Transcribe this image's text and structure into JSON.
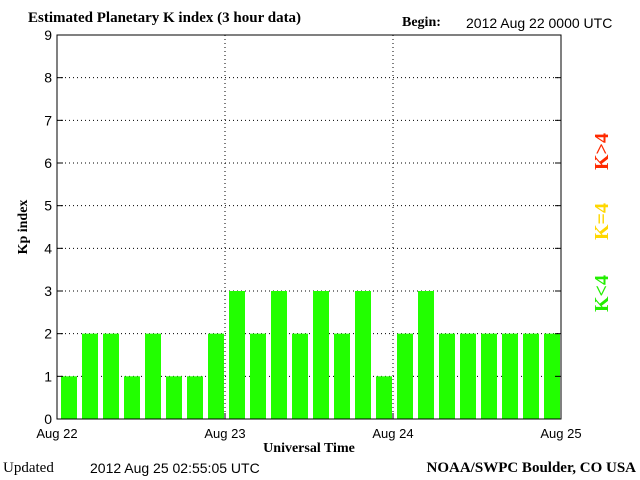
{
  "header": {
    "title": "Estimated Planetary K index (3 hour data)",
    "begin_label": "Begin:",
    "begin_value": "2012 Aug 22 0000 UTC"
  },
  "footer": {
    "updated_label": "Updated",
    "updated_value": "2012 Aug 25 02:55:05 UTC",
    "credit": "NOAA/SWPC Boulder, CO USA"
  },
  "legend": {
    "above": {
      "label": "K>4",
      "color": "#ff2a00"
    },
    "equal": {
      "label": "K=4",
      "color": "#ffd700"
    },
    "below": {
      "label": "K<4",
      "color": "#22ee00"
    }
  },
  "chart_data": {
    "type": "bar",
    "title": "Estimated Planetary K index (3 hour data)",
    "xlabel": "Universal Time",
    "ylabel": "Kp index",
    "ylim": [
      0,
      9
    ],
    "yticks": [
      "0",
      "1",
      "2",
      "3",
      "4",
      "5",
      "6",
      "7",
      "8",
      "9"
    ],
    "xticks": [
      "Aug 22",
      "Aug 23",
      "Aug 24",
      "Aug 25"
    ],
    "x_interval": "3 hour",
    "bar_color": "#22ff00",
    "grid": "dotted",
    "values": [
      1,
      2,
      2,
      1,
      2,
      1,
      1,
      2,
      3,
      2,
      3,
      2,
      3,
      2,
      3,
      1,
      2,
      3,
      2,
      2,
      2,
      2,
      2,
      2
    ]
  }
}
